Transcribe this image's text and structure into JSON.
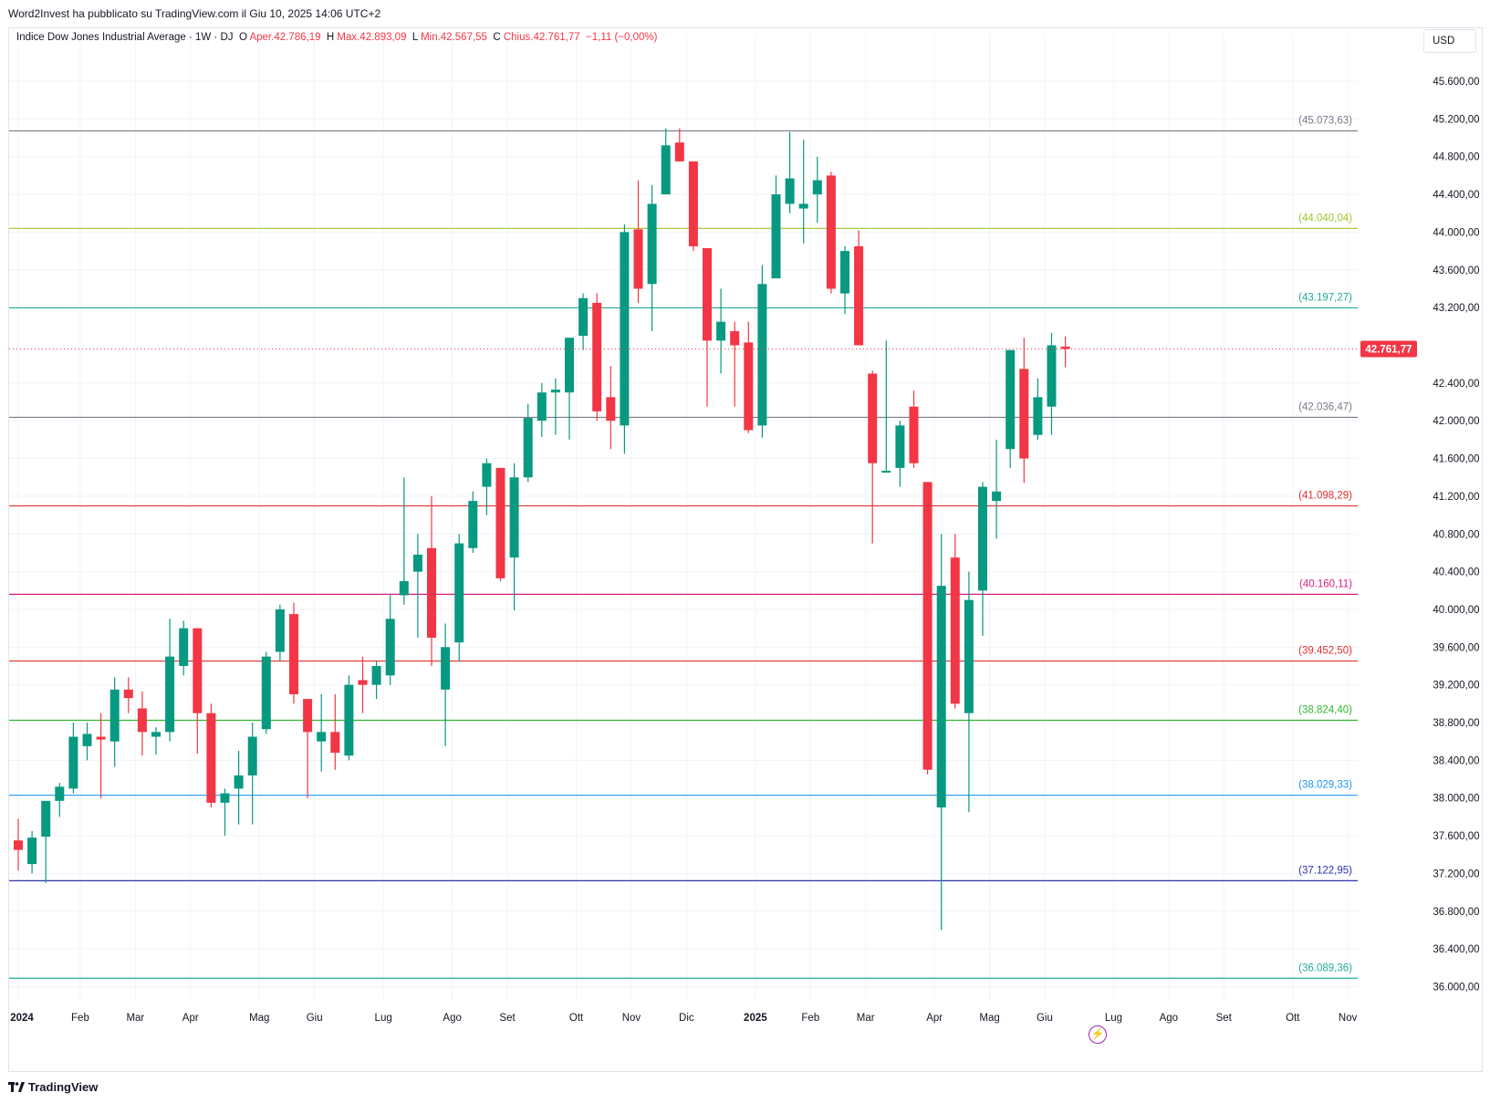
{
  "header": {
    "published": "Word2Invest ha pubblicato su TradingView.com il Giu 10, 2025 14:06 UTC+2"
  },
  "legend": {
    "symbol": "Indice Dow Jones Industrial Average · 1W · DJ",
    "o_label": "O",
    "o_value": "Aper.42.786,19",
    "h_label": "H",
    "h_value": "Max.42.893,09",
    "l_label": "L",
    "l_value": "Min.42.567,55",
    "c_label": "C",
    "c_value": "Chius.42.761,77",
    "change": "−1,11 (−0,00%)"
  },
  "currency": "USD",
  "footer": {
    "brand": "TradingView",
    "logo_icon": "tradingview-logo-icon"
  },
  "flash_icon": "lightning-icon",
  "colors": {
    "up": "#089981",
    "down": "#f23645",
    "grid": "#f0f3fa",
    "axis_text": "#131722"
  },
  "chart_data": {
    "type": "candlestick",
    "title": "Indice Dow Jones Industrial Average",
    "timeframe": "1W",
    "ylim": [
      35850,
      45900
    ],
    "y_ticks": [
      {
        "v": 36000,
        "label": "36.000,00"
      },
      {
        "v": 36400,
        "label": "36.400,00"
      },
      {
        "v": 36800,
        "label": "36.800,00"
      },
      {
        "v": 37200,
        "label": "37.200,00"
      },
      {
        "v": 37600,
        "label": "37.600,00"
      },
      {
        "v": 38000,
        "label": "38.000,00"
      },
      {
        "v": 38400,
        "label": "38.400,00"
      },
      {
        "v": 38800,
        "label": "38.800,00"
      },
      {
        "v": 39200,
        "label": "39.200,00"
      },
      {
        "v": 39600,
        "label": "39.600,00"
      },
      {
        "v": 40000,
        "label": "40.000,00"
      },
      {
        "v": 40400,
        "label": "40.400,00"
      },
      {
        "v": 40800,
        "label": "40.800,00"
      },
      {
        "v": 41200,
        "label": "41.200,00"
      },
      {
        "v": 41600,
        "label": "41.600,00"
      },
      {
        "v": 42000,
        "label": "42.000,00"
      },
      {
        "v": 42400,
        "label": "42.400,00"
      },
      {
        "v": 43200,
        "label": "43.200,00"
      },
      {
        "v": 43600,
        "label": "43.600,00"
      },
      {
        "v": 44000,
        "label": "44.000,00"
      },
      {
        "v": 44400,
        "label": "44.400,00"
      },
      {
        "v": 44800,
        "label": "44.800,00"
      },
      {
        "v": 45200,
        "label": "45.200,00"
      },
      {
        "v": 45600,
        "label": "45.600,00"
      }
    ],
    "x_ticks": [
      {
        "i": 0,
        "label": "2024",
        "bold": true
      },
      {
        "i": 4.5,
        "label": "Feb"
      },
      {
        "i": 8.5,
        "label": "Mar"
      },
      {
        "i": 12.5,
        "label": "Apr"
      },
      {
        "i": 17.5,
        "label": "Mag"
      },
      {
        "i": 21.5,
        "label": "Giu"
      },
      {
        "i": 26.5,
        "label": "Lug"
      },
      {
        "i": 31.5,
        "label": "Ago"
      },
      {
        "i": 35.5,
        "label": "Set"
      },
      {
        "i": 40.5,
        "label": "Ott"
      },
      {
        "i": 44.5,
        "label": "Nov"
      },
      {
        "i": 48.5,
        "label": "Dic"
      },
      {
        "i": 53.5,
        "label": "2025",
        "bold": true
      },
      {
        "i": 57.5,
        "label": "Feb"
      },
      {
        "i": 61.5,
        "label": "Mar"
      },
      {
        "i": 66.5,
        "label": "Apr"
      },
      {
        "i": 70.5,
        "label": "Mag"
      },
      {
        "i": 74.5,
        "label": "Giu"
      },
      {
        "i": 79.5,
        "label": "Lug"
      },
      {
        "i": 83.5,
        "label": "Ago"
      },
      {
        "i": 87.5,
        "label": "Set"
      },
      {
        "i": 92.5,
        "label": "Ott"
      },
      {
        "i": 96.5,
        "label": "Nov"
      }
    ],
    "levels": [
      {
        "value": 45073.63,
        "label": "(45.073,63)",
        "color": "#787b86"
      },
      {
        "value": 44040.04,
        "label": "(44.040,04)",
        "color": "#a0c530"
      },
      {
        "value": 43197.27,
        "label": "(43.197,27)",
        "color": "#22ab94"
      },
      {
        "value": 42036.47,
        "label": "(42.036,47)",
        "color": "#787b86"
      },
      {
        "value": 41098.29,
        "label": "(41.098,29)",
        "color": "#e03030"
      },
      {
        "value": 40160.11,
        "label": "(40.160,11)",
        "color": "#d81b80"
      },
      {
        "value": 39452.5,
        "label": "(39.452,50)",
        "color": "#e03030"
      },
      {
        "value": 38824.4,
        "label": "(38.824,40)",
        "color": "#2db82d"
      },
      {
        "value": 38029.33,
        "label": "(38.029,33)",
        "color": "#2196f3"
      },
      {
        "value": 37122.95,
        "label": "(37.122,95)",
        "color": "#3030b0"
      },
      {
        "value": 36089.36,
        "label": "(36.089,36)",
        "color": "#22ab94"
      }
    ],
    "last_price": {
      "value": 42761.77,
      "label": "42.761,77"
    },
    "candles": [
      {
        "o": 37550,
        "h": 37780,
        "l": 37230,
        "c": 37450
      },
      {
        "o": 37300,
        "h": 37650,
        "l": 37200,
        "c": 37580
      },
      {
        "o": 37590,
        "h": 37880,
        "l": 37100,
        "c": 37970
      },
      {
        "o": 37970,
        "h": 38160,
        "l": 37800,
        "c": 38120
      },
      {
        "o": 38100,
        "h": 38800,
        "l": 38050,
        "c": 38650
      },
      {
        "o": 38550,
        "h": 38800,
        "l": 38400,
        "c": 38680
      },
      {
        "o": 38650,
        "h": 38900,
        "l": 38000,
        "c": 38620
      },
      {
        "o": 38600,
        "h": 39280,
        "l": 38330,
        "c": 39150
      },
      {
        "o": 39150,
        "h": 39280,
        "l": 38900,
        "c": 39060
      },
      {
        "o": 38950,
        "h": 39130,
        "l": 38450,
        "c": 38700
      },
      {
        "o": 38650,
        "h": 38750,
        "l": 38460,
        "c": 38700
      },
      {
        "o": 38700,
        "h": 39900,
        "l": 38600,
        "c": 39500
      },
      {
        "o": 39400,
        "h": 39880,
        "l": 39300,
        "c": 39800
      },
      {
        "o": 39800,
        "h": 39800,
        "l": 38470,
        "c": 38900
      },
      {
        "o": 38900,
        "h": 39000,
        "l": 37900,
        "c": 37950
      },
      {
        "o": 37950,
        "h": 38100,
        "l": 37600,
        "c": 38050
      },
      {
        "o": 38100,
        "h": 38500,
        "l": 37720,
        "c": 38240
      },
      {
        "o": 38240,
        "h": 38800,
        "l": 37720,
        "c": 38650
      },
      {
        "o": 38730,
        "h": 39550,
        "l": 38680,
        "c": 39500
      },
      {
        "o": 39550,
        "h": 40050,
        "l": 39450,
        "c": 40000
      },
      {
        "o": 39950,
        "h": 40070,
        "l": 39000,
        "c": 39100
      },
      {
        "o": 39050,
        "h": 39050,
        "l": 38000,
        "c": 38700
      },
      {
        "o": 38600,
        "h": 39100,
        "l": 38280,
        "c": 38700
      },
      {
        "o": 38700,
        "h": 39100,
        "l": 38300,
        "c": 38480
      },
      {
        "o": 38450,
        "h": 39300,
        "l": 38400,
        "c": 39200
      },
      {
        "o": 39250,
        "h": 39500,
        "l": 38900,
        "c": 39200
      },
      {
        "o": 39200,
        "h": 39450,
        "l": 39050,
        "c": 39400
      },
      {
        "o": 39300,
        "h": 40150,
        "l": 39200,
        "c": 39900
      },
      {
        "o": 40150,
        "h": 41400,
        "l": 40050,
        "c": 40300
      },
      {
        "o": 40400,
        "h": 40800,
        "l": 39700,
        "c": 40580
      },
      {
        "o": 40650,
        "h": 41200,
        "l": 39400,
        "c": 39700
      },
      {
        "o": 39150,
        "h": 39850,
        "l": 38550,
        "c": 39600
      },
      {
        "o": 39650,
        "h": 40800,
        "l": 39450,
        "c": 40700
      },
      {
        "o": 40650,
        "h": 41250,
        "l": 40600,
        "c": 41150
      },
      {
        "o": 41300,
        "h": 41600,
        "l": 41000,
        "c": 41550
      },
      {
        "o": 41500,
        "h": 41500,
        "l": 40300,
        "c": 40330
      },
      {
        "o": 40550,
        "h": 41550,
        "l": 39990,
        "c": 41400
      },
      {
        "o": 41400,
        "h": 42180,
        "l": 41350,
        "c": 42030
      },
      {
        "o": 42000,
        "h": 42400,
        "l": 41830,
        "c": 42300
      },
      {
        "o": 42300,
        "h": 42450,
        "l": 41850,
        "c": 42330
      },
      {
        "o": 42300,
        "h": 42830,
        "l": 41800,
        "c": 42880
      },
      {
        "o": 42900,
        "h": 43350,
        "l": 42750,
        "c": 43300
      },
      {
        "o": 43250,
        "h": 43350,
        "l": 42000,
        "c": 42100
      },
      {
        "o": 42250,
        "h": 42580,
        "l": 41700,
        "c": 42000
      },
      {
        "o": 41950,
        "h": 44080,
        "l": 41650,
        "c": 44000
      },
      {
        "o": 44030,
        "h": 44550,
        "l": 43250,
        "c": 43400
      },
      {
        "o": 43450,
        "h": 44500,
        "l": 42950,
        "c": 44300
      },
      {
        "o": 44400,
        "h": 45100,
        "l": 44400,
        "c": 44920
      },
      {
        "o": 44950,
        "h": 45100,
        "l": 44750,
        "c": 44750
      },
      {
        "o": 44750,
        "h": 44750,
        "l": 43800,
        "c": 43850
      },
      {
        "o": 43830,
        "h": 43830,
        "l": 42150,
        "c": 42850
      },
      {
        "o": 42850,
        "h": 43400,
        "l": 42500,
        "c": 43050
      },
      {
        "o": 42950,
        "h": 43050,
        "l": 42150,
        "c": 42800
      },
      {
        "o": 42830,
        "h": 43050,
        "l": 41870,
        "c": 41900
      },
      {
        "o": 41950,
        "h": 43650,
        "l": 41820,
        "c": 43450
      },
      {
        "o": 43510,
        "h": 44600,
        "l": 43510,
        "c": 44400
      },
      {
        "o": 44300,
        "h": 45060,
        "l": 44200,
        "c": 44570
      },
      {
        "o": 44250,
        "h": 44980,
        "l": 43880,
        "c": 44300
      },
      {
        "o": 44400,
        "h": 44800,
        "l": 44100,
        "c": 44550
      },
      {
        "o": 44600,
        "h": 44640,
        "l": 43350,
        "c": 43400
      },
      {
        "o": 43350,
        "h": 43850,
        "l": 43130,
        "c": 43800
      },
      {
        "o": 43850,
        "h": 44020,
        "l": 42830,
        "c": 42800
      },
      {
        "o": 42500,
        "h": 42530,
        "l": 40700,
        "c": 41550
      },
      {
        "o": 41450,
        "h": 42850,
        "l": 41450,
        "c": 41470
      },
      {
        "o": 41500,
        "h": 42000,
        "l": 41300,
        "c": 41950
      },
      {
        "o": 42150,
        "h": 42320,
        "l": 41500,
        "c": 41550
      },
      {
        "o": 41350,
        "h": 41350,
        "l": 38250,
        "c": 38300
      },
      {
        "o": 37900,
        "h": 40800,
        "l": 36600,
        "c": 40250
      },
      {
        "o": 40550,
        "h": 40800,
        "l": 38950,
        "c": 39000
      },
      {
        "o": 38900,
        "h": 40400,
        "l": 37850,
        "c": 40100
      },
      {
        "o": 40200,
        "h": 41350,
        "l": 39720,
        "c": 41300
      },
      {
        "o": 41150,
        "h": 41800,
        "l": 40750,
        "c": 41250
      },
      {
        "o": 41700,
        "h": 42700,
        "l": 41500,
        "c": 42750
      },
      {
        "o": 42550,
        "h": 42880,
        "l": 41340,
        "c": 41600
      },
      {
        "o": 41850,
        "h": 42450,
        "l": 41800,
        "c": 42250
      },
      {
        "o": 42150,
        "h": 42930,
        "l": 41850,
        "c": 42800
      },
      {
        "o": 42786.19,
        "h": 42893.09,
        "l": 42567.55,
        "c": 42761.77
      }
    ]
  }
}
